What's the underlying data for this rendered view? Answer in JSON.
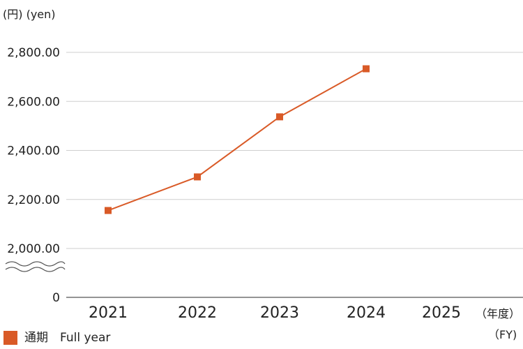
{
  "colors": {
    "series": "#D95A27",
    "grid": "#cfcfcf",
    "axis": "#555555"
  },
  "units": {
    "y": "(円) (yen)",
    "x_top": "（年度）",
    "x_bottom": "（FY)"
  },
  "legend": {
    "label": "通期　Full year"
  },
  "chart_data": {
    "type": "line",
    "categories": [
      "2021",
      "2022",
      "2023",
      "2024",
      "2025"
    ],
    "series": [
      {
        "name": "通期　Full year",
        "values": [
          2155,
          2292,
          2537,
          2733,
          null
        ]
      }
    ],
    "y_ticks": [
      "2,000.00",
      "2,200.00",
      "2,400.00",
      "2,600.00",
      "2,800.00"
    ],
    "y_tick_values": [
      2000,
      2200,
      2400,
      2600,
      2800
    ],
    "y_zero_label": "0",
    "ylim": [
      2000,
      2800
    ],
    "axis_break": true,
    "grid": true,
    "legend_position": "bottom-left",
    "marker": "square"
  }
}
